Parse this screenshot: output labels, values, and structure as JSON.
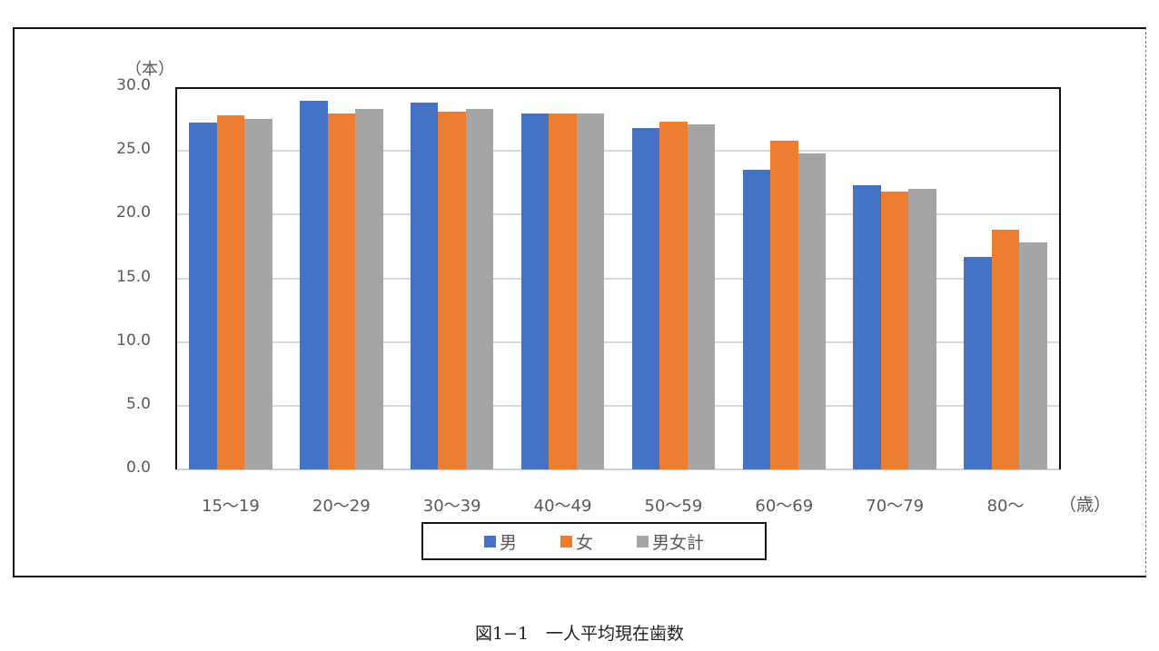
{
  "chart_data": {
    "type": "bar",
    "title": "",
    "caption": "図1−1　一人平均現在歯数",
    "ylabel": "（本）",
    "xlabel": "（歳）",
    "ylim": [
      0,
      30
    ],
    "yticks": [
      "0.0",
      "5.0",
      "10.0",
      "15.0",
      "20.0",
      "25.0",
      "30.0"
    ],
    "grid": true,
    "legend_position": "bottom",
    "categories": [
      "15〜19",
      "20〜29",
      "30〜39",
      "40〜49",
      "50〜59",
      "60〜69",
      "70〜79",
      "80〜"
    ],
    "series": [
      {
        "name": "男",
        "color": "#4472C4",
        "values": [
          27.2,
          28.9,
          28.8,
          27.9,
          26.8,
          23.5,
          22.3,
          16.7
        ]
      },
      {
        "name": "女",
        "color": "#ED7D31",
        "values": [
          27.8,
          27.9,
          28.1,
          27.9,
          27.3,
          25.8,
          21.8,
          18.8
        ]
      },
      {
        "name": "男女計",
        "color": "#A5A5A5",
        "values": [
          27.5,
          28.3,
          28.3,
          27.9,
          27.1,
          24.8,
          22.0,
          17.8
        ]
      }
    ]
  }
}
